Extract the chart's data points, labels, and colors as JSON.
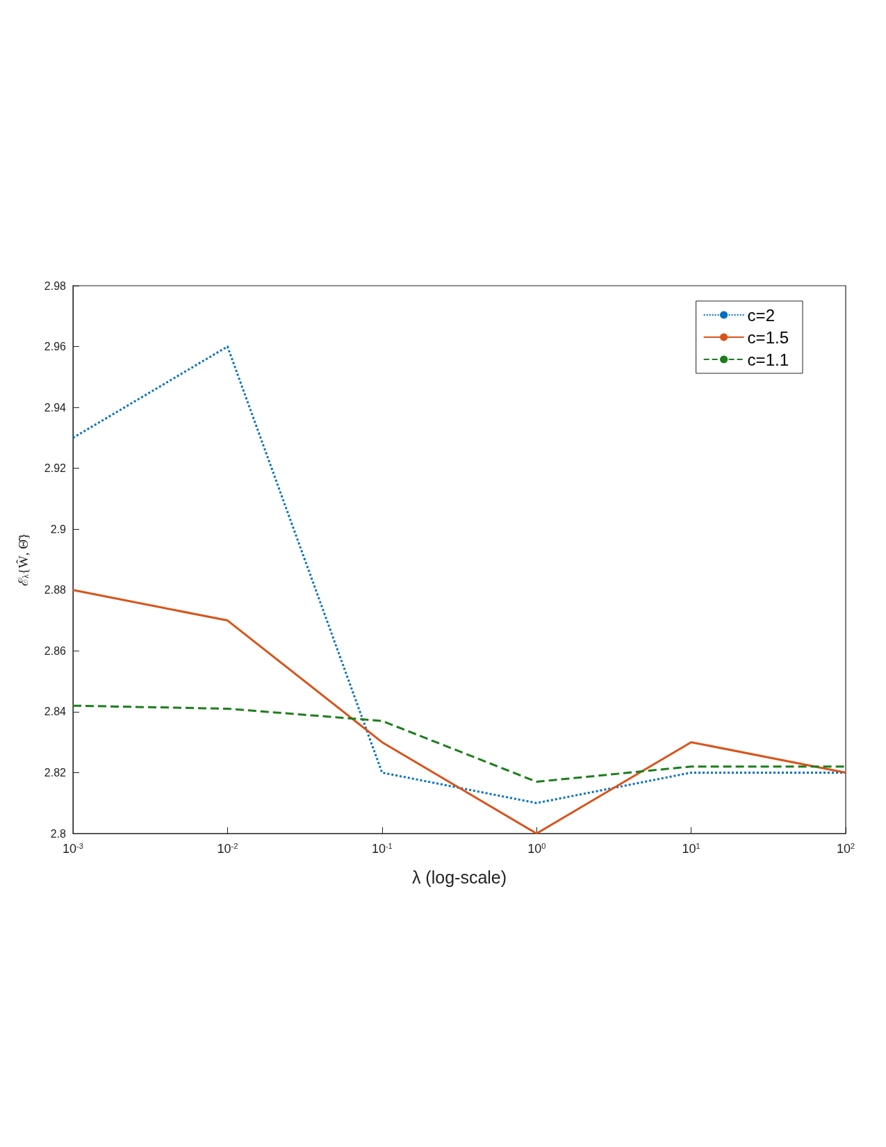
{
  "chart_data": {
    "type": "line",
    "xlabel": "λ (log-scale)",
    "ylabel": "ℰ$_{λ}${Ŵ, Θ̂}",
    "x": [
      0.001,
      0.01,
      0.1,
      1,
      10,
      100
    ],
    "series": [
      {
        "name": "c=2",
        "color": "#0072bd",
        "line_style": "dotted",
        "values": [
          2.93,
          2.96,
          2.82,
          2.81,
          2.82,
          2.82
        ]
      },
      {
        "name": "c=1.5",
        "color": "#d95319",
        "line_style": "solid",
        "values": [
          2.88,
          2.87,
          2.83,
          2.8,
          2.83,
          2.82
        ]
      },
      {
        "name": "c=1.1",
        "color": "#1a7f1a",
        "line_style": "dashed",
        "values": [
          2.842,
          2.841,
          2.837,
          2.817,
          2.822,
          2.822
        ]
      }
    ],
    "log": "x",
    "xlim": [
      0.001,
      100
    ],
    "xticks": [
      {
        "value": 0.001,
        "label": "10$^{-3}$"
      },
      {
        "value": 0.01,
        "label": "10$^{-2}$"
      },
      {
        "value": 0.1,
        "label": "10$^{-1}$"
      },
      {
        "value": 1,
        "label": "10$^{0}$"
      },
      {
        "value": 10,
        "label": "10$^{1}$"
      },
      {
        "value": 100,
        "label": "10$^{2}$"
      }
    ],
    "ylim": [
      2.8,
      2.98
    ],
    "yticks": [
      2.8,
      2.82,
      2.84,
      2.86,
      2.88,
      2.9,
      2.92,
      2.94,
      2.96,
      2.98
    ],
    "grid": false,
    "legend": "top right",
    "marker": "none"
  }
}
